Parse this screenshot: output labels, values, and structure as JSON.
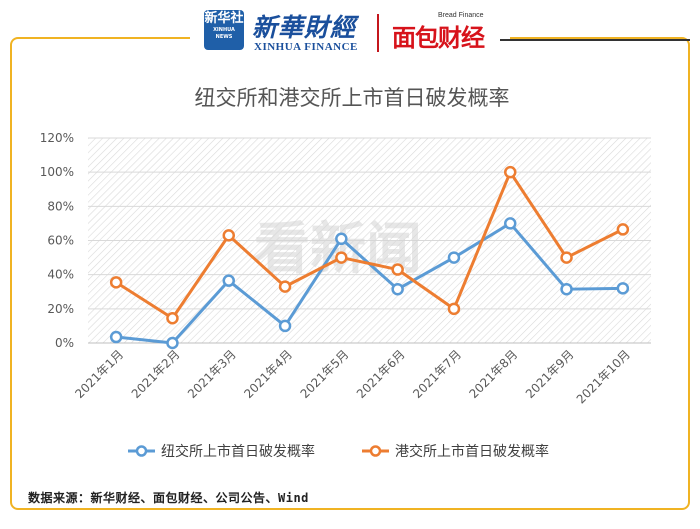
{
  "header": {
    "xinhua_badge_cn": "新华社",
    "xinhua_badge_en": "XINHUA NEWS",
    "xinhua_cn": "新華財經",
    "xinhua_en": "XINHUA FINANCE",
    "bread_en": "Bread Finance",
    "bread_cn": "面包财经"
  },
  "watermark": "看新闻",
  "source": "数据来源：新华财经、面包财经、公司公告、Wind",
  "colors": {
    "series1": "#5b9bd5",
    "series2": "#ed7d31",
    "frame": "#f0b323"
  },
  "chart_data": {
    "type": "line",
    "title": "纽交所和港交所上市首日破发概率",
    "categories": [
      "2021年1月",
      "2021年2月",
      "2021年3月",
      "2021年4月",
      "2021年5月",
      "2021年6月",
      "2021年7月",
      "2021年8月",
      "2021年9月",
      "2021年10月"
    ],
    "series": [
      {
        "name": "纽交所上市首日破发概率",
        "values": [
          3.5,
          0,
          36.5,
          10,
          61,
          31.5,
          50,
          70,
          31.5,
          32
        ]
      },
      {
        "name": "港交所上市首日破发概率",
        "values": [
          35.5,
          14.5,
          63,
          33,
          50,
          43,
          20,
          100,
          50,
          66.5
        ]
      }
    ],
    "ylim": [
      0,
      120
    ],
    "yticks": [
      "0%",
      "20%",
      "40%",
      "60%",
      "80%",
      "100%",
      "120%"
    ],
    "grid": true,
    "legend": "bottom"
  }
}
